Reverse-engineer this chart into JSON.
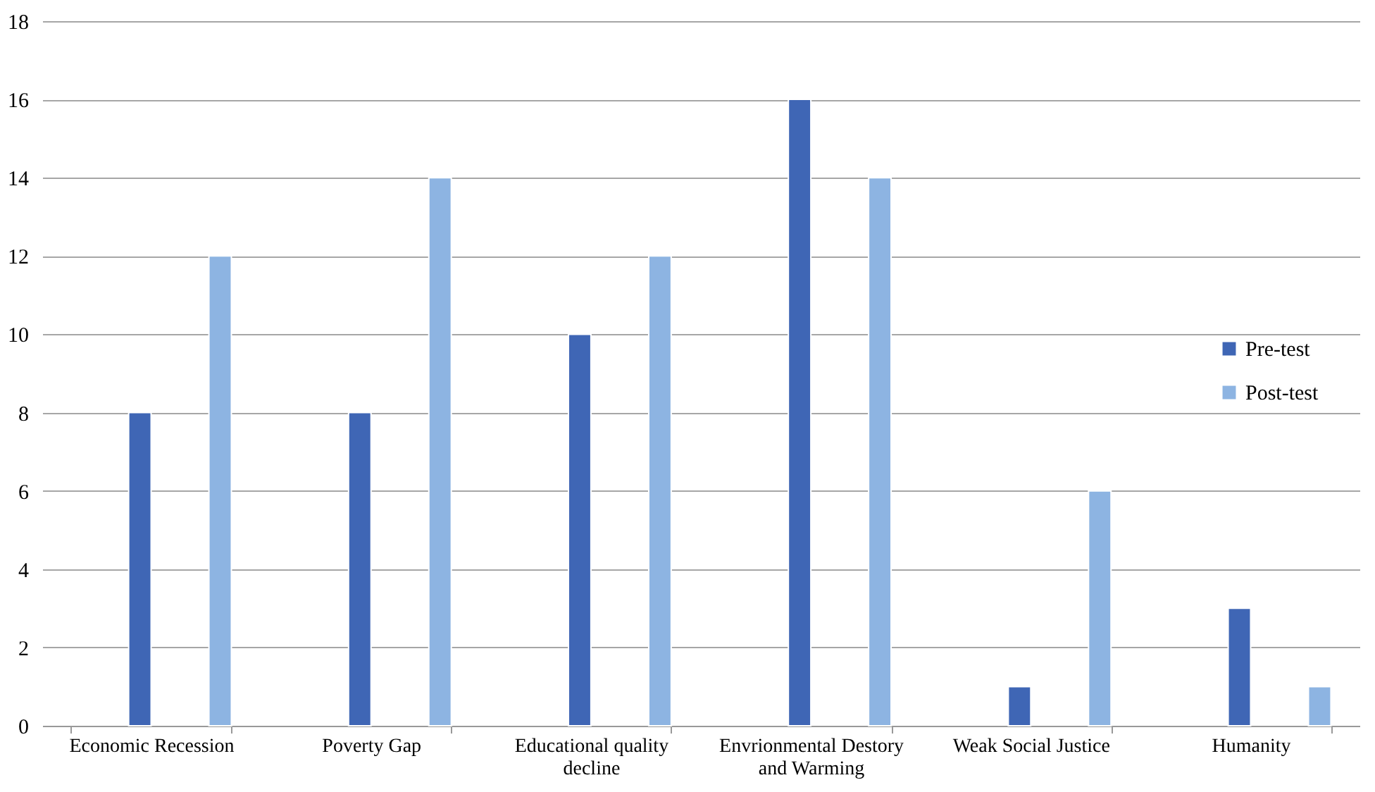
{
  "chart_data": {
    "type": "bar",
    "categories": [
      "Economic Recession",
      "Poverty Gap",
      "Educational quality decline",
      "Envrionmental Destory and Warming",
      "Weak Social Justice",
      "Humanity"
    ],
    "series": [
      {
        "name": "Pre-test",
        "color": "#3f66b5",
        "values": [
          8,
          8,
          10,
          16,
          1,
          3
        ]
      },
      {
        "name": "Post-test",
        "color": "#8db4e2",
        "values": [
          12,
          14,
          12,
          14,
          6,
          1
        ]
      }
    ],
    "ylim": [
      0,
      18
    ],
    "yticks": [
      0,
      2,
      4,
      6,
      8,
      10,
      12,
      14,
      16,
      18
    ],
    "grid": "y",
    "legend": "right"
  }
}
